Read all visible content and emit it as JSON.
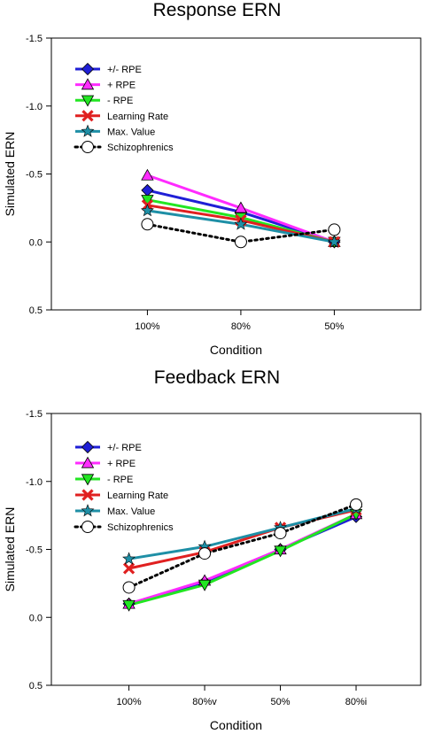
{
  "chart_data": [
    {
      "type": "line",
      "title": "Response ERN",
      "xlabel": "Condition",
      "ylabel": "Simulated ERN",
      "categories": [
        "100%",
        "80%",
        "50%"
      ],
      "ylim": [
        0.5,
        -1.5
      ],
      "yticks": [
        "-1.5",
        "-1.0",
        "-0.5",
        "0.0",
        "0.5"
      ],
      "ytick_values": [
        -1.5,
        -1.0,
        -0.5,
        0.0,
        0.5
      ],
      "inverted_y": true,
      "legend_position": "top-left",
      "series": [
        {
          "name": "+/- RPE",
          "values": [
            -0.38,
            -0.22,
            0.0
          ],
          "color": "#1f1fd6",
          "marker": "diamond",
          "dash": false
        },
        {
          "name": "+ RPE",
          "values": [
            -0.49,
            -0.25,
            0.0
          ],
          "color": "#ff2bff",
          "marker": "triangle-up",
          "dash": false
        },
        {
          "name": "- RPE",
          "values": [
            -0.31,
            -0.18,
            0.0
          ],
          "color": "#22e622",
          "marker": "triangle-down",
          "dash": false
        },
        {
          "name": "Learning Rate",
          "values": [
            -0.27,
            -0.16,
            0.0
          ],
          "color": "#e02020",
          "marker": "x",
          "dash": false
        },
        {
          "name": "Max. Value",
          "values": [
            -0.23,
            -0.13,
            0.0
          ],
          "color": "#1e8fa6",
          "marker": "star",
          "dash": false
        },
        {
          "name": "Schizophrenics",
          "values": [
            -0.13,
            0.0,
            -0.09
          ],
          "color": "#000000",
          "marker": "circle",
          "dash": true
        }
      ]
    },
    {
      "type": "line",
      "title": "Feedback ERN",
      "xlabel": "Condition",
      "ylabel": "Simulated ERN",
      "categories": [
        "100%",
        "80%v",
        "50%",
        "80%i"
      ],
      "ylim": [
        0.5,
        -1.5
      ],
      "yticks": [
        "-1.5",
        "-1.0",
        "-0.5",
        "0.0",
        "0.5"
      ],
      "ytick_values": [
        -1.5,
        -1.0,
        -0.5,
        0.0,
        0.5
      ],
      "inverted_y": true,
      "legend_position": "top-left",
      "series": [
        {
          "name": "+/- RPE",
          "values": [
            -0.1,
            -0.26,
            -0.5,
            -0.74
          ],
          "color": "#1f1fd6",
          "marker": "diamond",
          "dash": false
        },
        {
          "name": "+ RPE",
          "values": [
            -0.1,
            -0.27,
            -0.5,
            -0.76
          ],
          "color": "#ff2bff",
          "marker": "triangle-up",
          "dash": false
        },
        {
          "name": "- RPE",
          "values": [
            -0.09,
            -0.24,
            -0.49,
            -0.76
          ],
          "color": "#22e622",
          "marker": "triangle-down",
          "dash": false
        },
        {
          "name": "Learning Rate",
          "values": [
            -0.36,
            -0.48,
            -0.66,
            -0.79
          ],
          "color": "#e02020",
          "marker": "x",
          "dash": false
        },
        {
          "name": "Max. Value",
          "values": [
            -0.43,
            -0.52,
            -0.66,
            -0.8
          ],
          "color": "#1e8fa6",
          "marker": "star",
          "dash": false
        },
        {
          "name": "Schizophrenics",
          "values": [
            -0.22,
            -0.47,
            -0.62,
            -0.83
          ],
          "color": "#000000",
          "marker": "circle",
          "dash": true
        }
      ]
    }
  ]
}
